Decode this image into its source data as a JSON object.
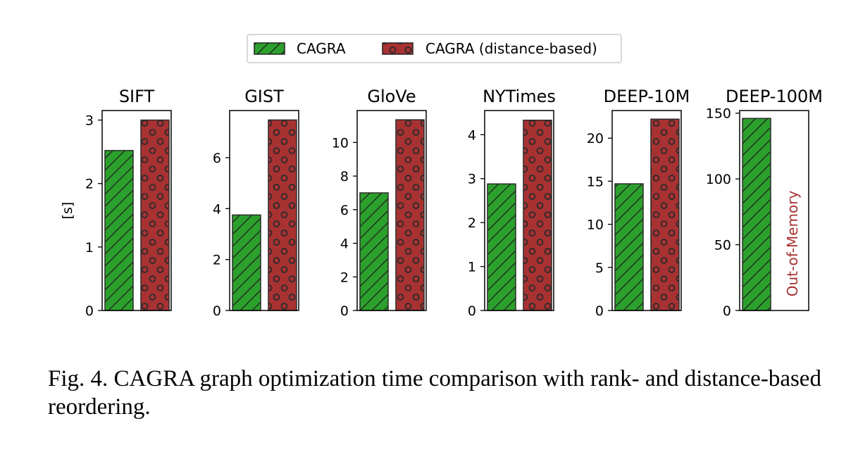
{
  "legend": {
    "placement": "top-center",
    "entries": [
      {
        "name": "CAGRA",
        "color": "#2ca02c",
        "hatch": "diagonal"
      },
      {
        "name": "CAGRA (distance-based)",
        "color": "#a83232",
        "hatch": "circles"
      }
    ]
  },
  "caption": {
    "text": "Fig. 4.  CAGRA graph optimization time comparison with rank- and distance-based reordering."
  },
  "chart_data": [
    {
      "type": "bar",
      "title": "SIFT",
      "ylabel": "[s]",
      "ylim": [
        0,
        3.15
      ],
      "yticks": [
        0,
        1,
        2,
        3
      ],
      "tick_labels": [
        "0",
        "1",
        "2",
        "3"
      ],
      "series": [
        {
          "name": "CAGRA",
          "values": [
            2.52
          ]
        },
        {
          "name": "CAGRA (distance-based)",
          "values": [
            3.0
          ]
        }
      ]
    },
    {
      "type": "bar",
      "title": "GIST",
      "ylabel": "",
      "ylim": [
        0,
        7.85
      ],
      "yticks": [
        0,
        2,
        4,
        6
      ],
      "tick_labels": [
        "0",
        "2",
        "4",
        "6"
      ],
      "series": [
        {
          "name": "CAGRA",
          "values": [
            3.75
          ]
        },
        {
          "name": "CAGRA (distance-based)",
          "values": [
            7.48
          ]
        }
      ]
    },
    {
      "type": "bar",
      "title": "GloVe",
      "ylabel": "",
      "ylim": [
        0,
        11.9
      ],
      "yticks": [
        0,
        2,
        4,
        6,
        8,
        10
      ],
      "tick_labels": [
        "0",
        "2",
        "4",
        "6",
        "8",
        "10"
      ],
      "series": [
        {
          "name": "CAGRA",
          "values": [
            7.0
          ]
        },
        {
          "name": "CAGRA (distance-based)",
          "values": [
            11.35
          ]
        }
      ]
    },
    {
      "type": "bar",
      "title": "NYTimes",
      "ylabel": "",
      "ylim": [
        0,
        4.55
      ],
      "yticks": [
        0,
        1,
        2,
        3,
        4
      ],
      "tick_labels": [
        "0",
        "1",
        "2",
        "3",
        "4"
      ],
      "series": [
        {
          "name": "CAGRA",
          "values": [
            2.88
          ]
        },
        {
          "name": "CAGRA (distance-based)",
          "values": [
            4.33
          ]
        }
      ]
    },
    {
      "type": "bar",
      "title": "DEEP-10M",
      "ylabel": "",
      "ylim": [
        0,
        23.2
      ],
      "yticks": [
        0,
        5,
        10,
        15,
        20
      ],
      "tick_labels": [
        "0",
        "5",
        "10",
        "15",
        "20"
      ],
      "series": [
        {
          "name": "CAGRA",
          "values": [
            14.7
          ]
        },
        {
          "name": "CAGRA (distance-based)",
          "values": [
            22.2
          ]
        }
      ]
    },
    {
      "type": "bar",
      "title": "DEEP-100M",
      "ylabel": "",
      "ylim": [
        0,
        152
      ],
      "yticks": [
        0,
        50,
        100,
        150
      ],
      "tick_labels": [
        "0",
        "50",
        "100",
        "150"
      ],
      "series": [
        {
          "name": "CAGRA",
          "values": [
            146
          ]
        },
        {
          "name": "CAGRA (distance-based)",
          "values": [
            null
          ]
        }
      ],
      "annotation": "Out-of-Memory"
    }
  ]
}
